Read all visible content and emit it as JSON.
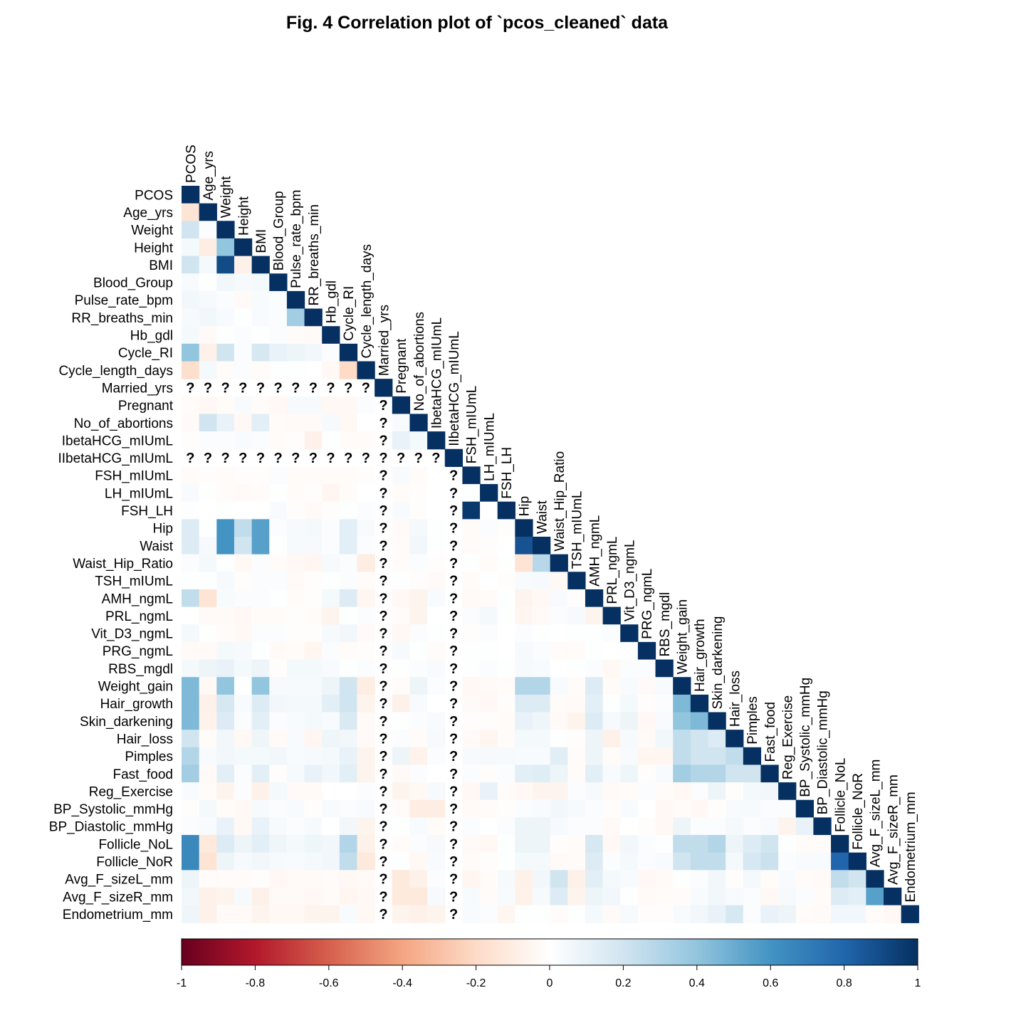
{
  "chart_data": {
    "type": "heatmap",
    "title": "Fig. 4 Correlation plot of `pcos_cleaned` data",
    "layout": "lower-triangular",
    "variables": [
      "PCOS",
      "Age_yrs",
      "Weight",
      "Height",
      "BMI",
      "Blood_Group",
      "Pulse_rate_bpm",
      "RR_breaths_min",
      "Hb_gdl",
      "Cycle_RI",
      "Cycle_length_days",
      "Married_yrs",
      "Pregnant",
      "No_of_abortions",
      "IbetaHCG_mIUmL",
      "IIbetaHCG_mIUmL",
      "FSH_mIUmL",
      "LH_mIUmL",
      "FSH_LH",
      "Hip",
      "Waist",
      "Waist_Hip_Ratio",
      "TSH_mIUmL",
      "AMH_ngmL",
      "PRL_ngmL",
      "Vit_D3_ngmL",
      "PRG_ngmL",
      "RBS_mgdl",
      "Weight_gain",
      "Hair_growth",
      "Skin_darkening",
      "Hair_loss",
      "Pimples",
      "Fast_food",
      "Reg_Exercise",
      "BP_Systolic_mmHg",
      "BP_Diastolic_mmHg",
      "Follicle_NoL",
      "Follicle_NoR",
      "Avg_F_sizeL_mm",
      "Avg_F_sizeR_mm",
      "Endometrium_mm"
    ],
    "missing_symbol": "?",
    "missing_variables": [
      "Married_yrs",
      "IIbetaHCG_mIUmL"
    ],
    "matrix_lower": [
      [
        1
      ],
      [
        -0.15,
        1
      ],
      [
        0.2,
        0.02,
        1
      ],
      [
        0.05,
        -0.1,
        0.4,
        1
      ],
      [
        0.2,
        0.05,
        0.9,
        -0.08,
        1
      ],
      [
        0.03,
        0.01,
        0.06,
        0.04,
        0.05,
        1
      ],
      [
        0.06,
        0.04,
        0.02,
        -0.03,
        0.03,
        0.02,
        1
      ],
      [
        0.04,
        0.06,
        0.03,
        0.01,
        0.03,
        0.02,
        0.35,
        1
      ],
      [
        0.05,
        -0.03,
        0.01,
        0.02,
        0.01,
        0.02,
        -0.02,
        -0.03,
        1
      ],
      [
        0.4,
        -0.08,
        0.2,
        0.02,
        0.18,
        0.1,
        0.08,
        0.06,
        0.02,
        1
      ],
      [
        -0.18,
        0.05,
        -0.02,
        0.02,
        -0.02,
        0.01,
        0.01,
        0.0,
        -0.04,
        -0.2,
        1
      ],
      [
        null,
        null,
        null,
        null,
        null,
        null,
        null,
        null,
        null,
        null,
        null,
        1
      ],
      [
        -0.02,
        -0.04,
        -0.02,
        0.03,
        -0.02,
        -0.04,
        0.04,
        0.04,
        -0.04,
        -0.04,
        0.02,
        null,
        1
      ],
      [
        -0.03,
        0.2,
        0.1,
        -0.04,
        0.12,
        -0.02,
        -0.03,
        -0.03,
        0.04,
        -0.04,
        0.0,
        null,
        0.03,
        1
      ],
      [
        -0.01,
        0.02,
        0.02,
        0.03,
        0.02,
        -0.02,
        -0.01,
        -0.08,
        0.01,
        -0.02,
        -0.02,
        null,
        0.1,
        0.05,
        1
      ],
      [
        null,
        null,
        null,
        null,
        null,
        null,
        null,
        null,
        null,
        null,
        null,
        null,
        null,
        null,
        null,
        1
      ],
      [
        -0.02,
        -0.01,
        -0.02,
        -0.01,
        -0.01,
        0.02,
        -0.02,
        -0.02,
        -0.02,
        -0.02,
        -0.01,
        null,
        0.03,
        -0.02,
        0.0,
        null,
        1
      ],
      [
        0.03,
        0.01,
        -0.02,
        -0.03,
        -0.02,
        0.01,
        -0.02,
        -0.01,
        -0.05,
        -0.02,
        0.0,
        null,
        -0.02,
        -0.01,
        0.0,
        null,
        0.01,
        1
      ],
      [
        0.01,
        0.0,
        0.01,
        0.0,
        0.0,
        0.03,
        -0.01,
        -0.03,
        -0.01,
        0.01,
        0.02,
        null,
        0.03,
        -0.01,
        0.0,
        null,
        0.97,
        0.0,
        1
      ],
      [
        0.15,
        0.01,
        0.6,
        0.25,
        0.55,
        0.02,
        0.04,
        0.05,
        0.02,
        0.12,
        0.03,
        null,
        -0.03,
        0.05,
        0.01,
        null,
        -0.02,
        0.02,
        -0.01,
        1
      ],
      [
        0.15,
        0.04,
        0.6,
        0.2,
        0.55,
        0.01,
        0.04,
        0.04,
        0.02,
        0.12,
        0.02,
        null,
        -0.02,
        0.06,
        0.01,
        null,
        -0.02,
        -0.01,
        0.0,
        0.87,
        1
      ],
      [
        0.02,
        0.05,
        0.01,
        -0.04,
        0.02,
        -0.02,
        -0.04,
        -0.05,
        0.04,
        0.02,
        -0.1,
        null,
        -0.02,
        0.02,
        -0.01,
        null,
        0.01,
        -0.02,
        0.01,
        -0.15,
        0.28,
        1
      ],
      [
        0.01,
        0.01,
        0.04,
        -0.01,
        0.02,
        0.02,
        -0.03,
        -0.01,
        0.01,
        0.02,
        -0.02,
        null,
        0.01,
        -0.01,
        -0.03,
        null,
        -0.02,
        0.0,
        -0.01,
        0.03,
        0.04,
        -0.04,
        1
      ],
      [
        0.25,
        -0.15,
        0.03,
        0.02,
        0.02,
        0.01,
        -0.02,
        -0.01,
        0.05,
        0.15,
        -0.05,
        null,
        -0.04,
        -0.06,
        0.03,
        null,
        -0.03,
        -0.02,
        0.01,
        -0.06,
        -0.04,
        0.03,
        -0.01,
        1
      ],
      [
        0.0,
        -0.03,
        -0.03,
        -0.04,
        -0.02,
        -0.02,
        -0.01,
        -0.02,
        -0.06,
        0.01,
        0.02,
        null,
        -0.02,
        -0.06,
        0.0,
        null,
        0.02,
        0.05,
        0.01,
        -0.05,
        -0.03,
        0.02,
        0.04,
        -0.06,
        1
      ],
      [
        0.05,
        0.01,
        -0.02,
        -0.04,
        0.02,
        0.02,
        -0.01,
        -0.01,
        0.04,
        0.06,
        -0.03,
        null,
        -0.04,
        0.02,
        0.01,
        null,
        -0.01,
        0.02,
        0.0,
        0.02,
        0.01,
        0.0,
        0.01,
        0.01,
        0.02,
        1
      ],
      [
        -0.03,
        -0.03,
        0.05,
        0.04,
        0.01,
        -0.03,
        -0.02,
        -0.05,
        0.02,
        -0.02,
        -0.01,
        null,
        0.04,
        0.01,
        -0.02,
        null,
        0.01,
        0.01,
        0.0,
        0.04,
        0.02,
        -0.02,
        -0.02,
        0.01,
        0.0,
        0.01,
        1
      ],
      [
        0.05,
        0.08,
        0.1,
        0.05,
        0.08,
        -0.01,
        0.05,
        0.05,
        0.03,
        0.01,
        0.02,
        null,
        0.01,
        0.02,
        0.03,
        null,
        0.01,
        0.02,
        0.01,
        0.04,
        0.03,
        0.0,
        0.01,
        0.02,
        -0.04,
        0.02,
        0.02,
        1
      ],
      [
        0.45,
        -0.04,
        0.4,
        0.01,
        0.4,
        0.04,
        0.04,
        0.04,
        0.08,
        0.2,
        -0.1,
        null,
        -0.02,
        0.08,
        0.02,
        null,
        -0.04,
        -0.03,
        -0.02,
        0.3,
        0.3,
        0.03,
        -0.02,
        0.15,
        -0.02,
        0.03,
        -0.03,
        0.03,
        1
      ],
      [
        0.45,
        -0.08,
        0.18,
        0.03,
        0.15,
        0.06,
        0.05,
        0.05,
        0.12,
        0.2,
        -0.06,
        null,
        -0.08,
        0.03,
        0.0,
        null,
        -0.03,
        -0.04,
        -0.01,
        0.15,
        0.15,
        -0.02,
        -0.03,
        0.12,
        0.01,
        0.05,
        -0.01,
        0.02,
        0.45,
        1
      ],
      [
        0.45,
        -0.07,
        0.15,
        0.02,
        0.12,
        0.02,
        0.03,
        0.05,
        0.03,
        0.16,
        -0.03,
        null,
        0.01,
        0.02,
        0.03,
        null,
        -0.01,
        -0.01,
        -0.02,
        0.1,
        0.07,
        -0.03,
        -0.06,
        0.15,
        0.04,
        0.08,
        -0.04,
        0.03,
        0.4,
        0.45,
        1
      ],
      [
        0.2,
        -0.02,
        0.06,
        -0.04,
        0.07,
        -0.03,
        0.03,
        -0.05,
        0.07,
        0.06,
        -0.03,
        null,
        0.02,
        -0.02,
        0.04,
        null,
        -0.03,
        -0.05,
        -0.02,
        0.05,
        0.05,
        0.01,
        -0.01,
        0.08,
        -0.08,
        0.04,
        -0.03,
        0.06,
        0.25,
        0.2,
        0.15,
        1
      ],
      [
        0.3,
        0.03,
        0.06,
        0.05,
        0.05,
        0.06,
        0.03,
        0.04,
        0.05,
        0.1,
        -0.06,
        null,
        0.08,
        -0.07,
        0.02,
        null,
        0.04,
        0.04,
        0.04,
        0.03,
        0.03,
        0.13,
        -0.02,
        0.08,
        -0.02,
        0.03,
        -0.05,
        -0.05,
        0.25,
        0.2,
        0.2,
        0.25,
        1
      ],
      [
        0.35,
        -0.03,
        0.12,
        0.02,
        0.12,
        -0.01,
        0.04,
        0.1,
        0.06,
        0.12,
        -0.06,
        null,
        -0.03,
        0.02,
        0.0,
        null,
        0.02,
        -0.01,
        0.02,
        0.12,
        0.14,
        0.08,
        -0.02,
        0.12,
        0.03,
        0.07,
        -0.01,
        0.03,
        0.35,
        0.3,
        0.3,
        0.2,
        0.2,
        1
      ],
      [
        0.03,
        -0.02,
        -0.06,
        0.02,
        -0.08,
        0.05,
        -0.03,
        -0.03,
        0.0,
        0.0,
        0.02,
        null,
        -0.06,
        -0.04,
        0.04,
        null,
        -0.04,
        0.1,
        -0.02,
        -0.04,
        -0.06,
        -0.06,
        0.02,
        0.04,
        -0.03,
        -0.02,
        0.02,
        -0.02,
        -0.04,
        0.02,
        0.08,
        -0.01,
        0.05,
        0.06,
        1
      ],
      [
        -0.01,
        0.05,
        -0.02,
        -0.04,
        0.04,
        0.02,
        0.03,
        -0.01,
        0.03,
        0.02,
        0.03,
        null,
        -0.02,
        -0.1,
        -0.1,
        null,
        -0.03,
        -0.02,
        -0.01,
        0.02,
        0.03,
        0.06,
        0.04,
        0.02,
        -0.01,
        0.03,
        0.0,
        -0.04,
        -0.02,
        -0.04,
        -0.01,
        0.03,
        0.04,
        0.02,
        0.02,
        1
      ],
      [
        0.02,
        0.03,
        0.1,
        -0.04,
        0.1,
        0.04,
        0.02,
        0.04,
        0.0,
        0.06,
        -0.06,
        null,
        0.01,
        0.03,
        -0.02,
        null,
        0.02,
        0.0,
        0.02,
        0.08,
        0.08,
        0.04,
        0.02,
        0.02,
        -0.03,
        0.0,
        -0.01,
        -0.04,
        0.08,
        0.02,
        0.02,
        0.05,
        0.02,
        0.03,
        -0.06,
        0.1,
        1
      ],
      [
        0.65,
        -0.12,
        0.15,
        0.08,
        0.12,
        0.07,
        0.05,
        0.07,
        0.06,
        0.3,
        -0.08,
        null,
        -0.02,
        0.02,
        0.04,
        null,
        -0.03,
        -0.04,
        0.01,
        0.08,
        0.08,
        -0.01,
        -0.02,
        0.18,
        -0.04,
        0.06,
        0.02,
        0.01,
        0.25,
        0.25,
        0.3,
        0.08,
        0.15,
        0.2,
        0.01,
        -0.02,
        -0.02,
        1
      ],
      [
        0.65,
        -0.15,
        0.08,
        0.04,
        0.06,
        0.04,
        0.03,
        0.05,
        0.06,
        0.25,
        -0.12,
        null,
        0.01,
        -0.04,
        0.03,
        null,
        -0.02,
        -0.01,
        0.01,
        0.05,
        0.05,
        -0.03,
        -0.02,
        0.15,
        0.02,
        0.05,
        0.02,
        0.03,
        0.2,
        0.25,
        0.25,
        0.05,
        0.18,
        0.22,
        0.02,
        0.03,
        0.03,
        0.8,
        1
      ],
      [
        0.08,
        -0.02,
        -0.02,
        -0.02,
        -0.01,
        -0.04,
        -0.03,
        -0.03,
        -0.02,
        -0.04,
        -0.03,
        null,
        -0.12,
        -0.08,
        0.02,
        null,
        -0.05,
        -0.02,
        0.04,
        -0.08,
        0.06,
        0.2,
        -0.08,
        0.12,
        0.05,
        0.03,
        -0.04,
        -0.03,
        0.01,
        0.02,
        0.06,
        -0.01,
        0.05,
        -0.02,
        0.03,
        -0.02,
        -0.03,
        0.25,
        0.2,
        1
      ],
      [
        0.06,
        -0.08,
        -0.06,
        0.04,
        -0.08,
        -0.03,
        -0.03,
        -0.04,
        -0.02,
        -0.05,
        -0.04,
        null,
        -0.12,
        -0.12,
        0.04,
        null,
        0.03,
        -0.02,
        0.03,
        -0.07,
        0.04,
        0.15,
        -0.06,
        0.08,
        0.06,
        0.01,
        -0.03,
        -0.02,
        -0.02,
        0.03,
        0.06,
        0.03,
        0.02,
        -0.04,
        0.04,
        0.02,
        -0.02,
        0.15,
        0.12,
        0.55,
        1
      ],
      [
        0.07,
        -0.08,
        -0.03,
        -0.03,
        -0.06,
        -0.04,
        -0.04,
        -0.06,
        -0.06,
        0.03,
        -0.04,
        null,
        -0.06,
        -0.08,
        -0.06,
        null,
        0.03,
        0.02,
        -0.05,
        0.01,
        0.01,
        -0.02,
        0.01,
        0.05,
        -0.03,
        0.04,
        -0.01,
        -0.01,
        0.03,
        0.06,
        0.1,
        0.18,
        0.02,
        0.1,
        0.08,
        -0.02,
        -0.03,
        0.06,
        0.06,
        -0.02,
        -0.04,
        1
      ]
    ],
    "colorbar": {
      "ticks": [
        "-1",
        "-0.8",
        "-0.6",
        "-0.4",
        "-0.2",
        "0",
        "0.2",
        "0.4",
        "0.6",
        "0.8",
        "1"
      ],
      "range": [
        -1,
        1
      ],
      "colors": [
        "#67001f",
        "#b2182b",
        "#d6604d",
        "#f4a582",
        "#fddbc7",
        "#ffffff",
        "#d1e5f0",
        "#92c5de",
        "#4393c3",
        "#2166ac",
        "#053061"
      ]
    }
  }
}
